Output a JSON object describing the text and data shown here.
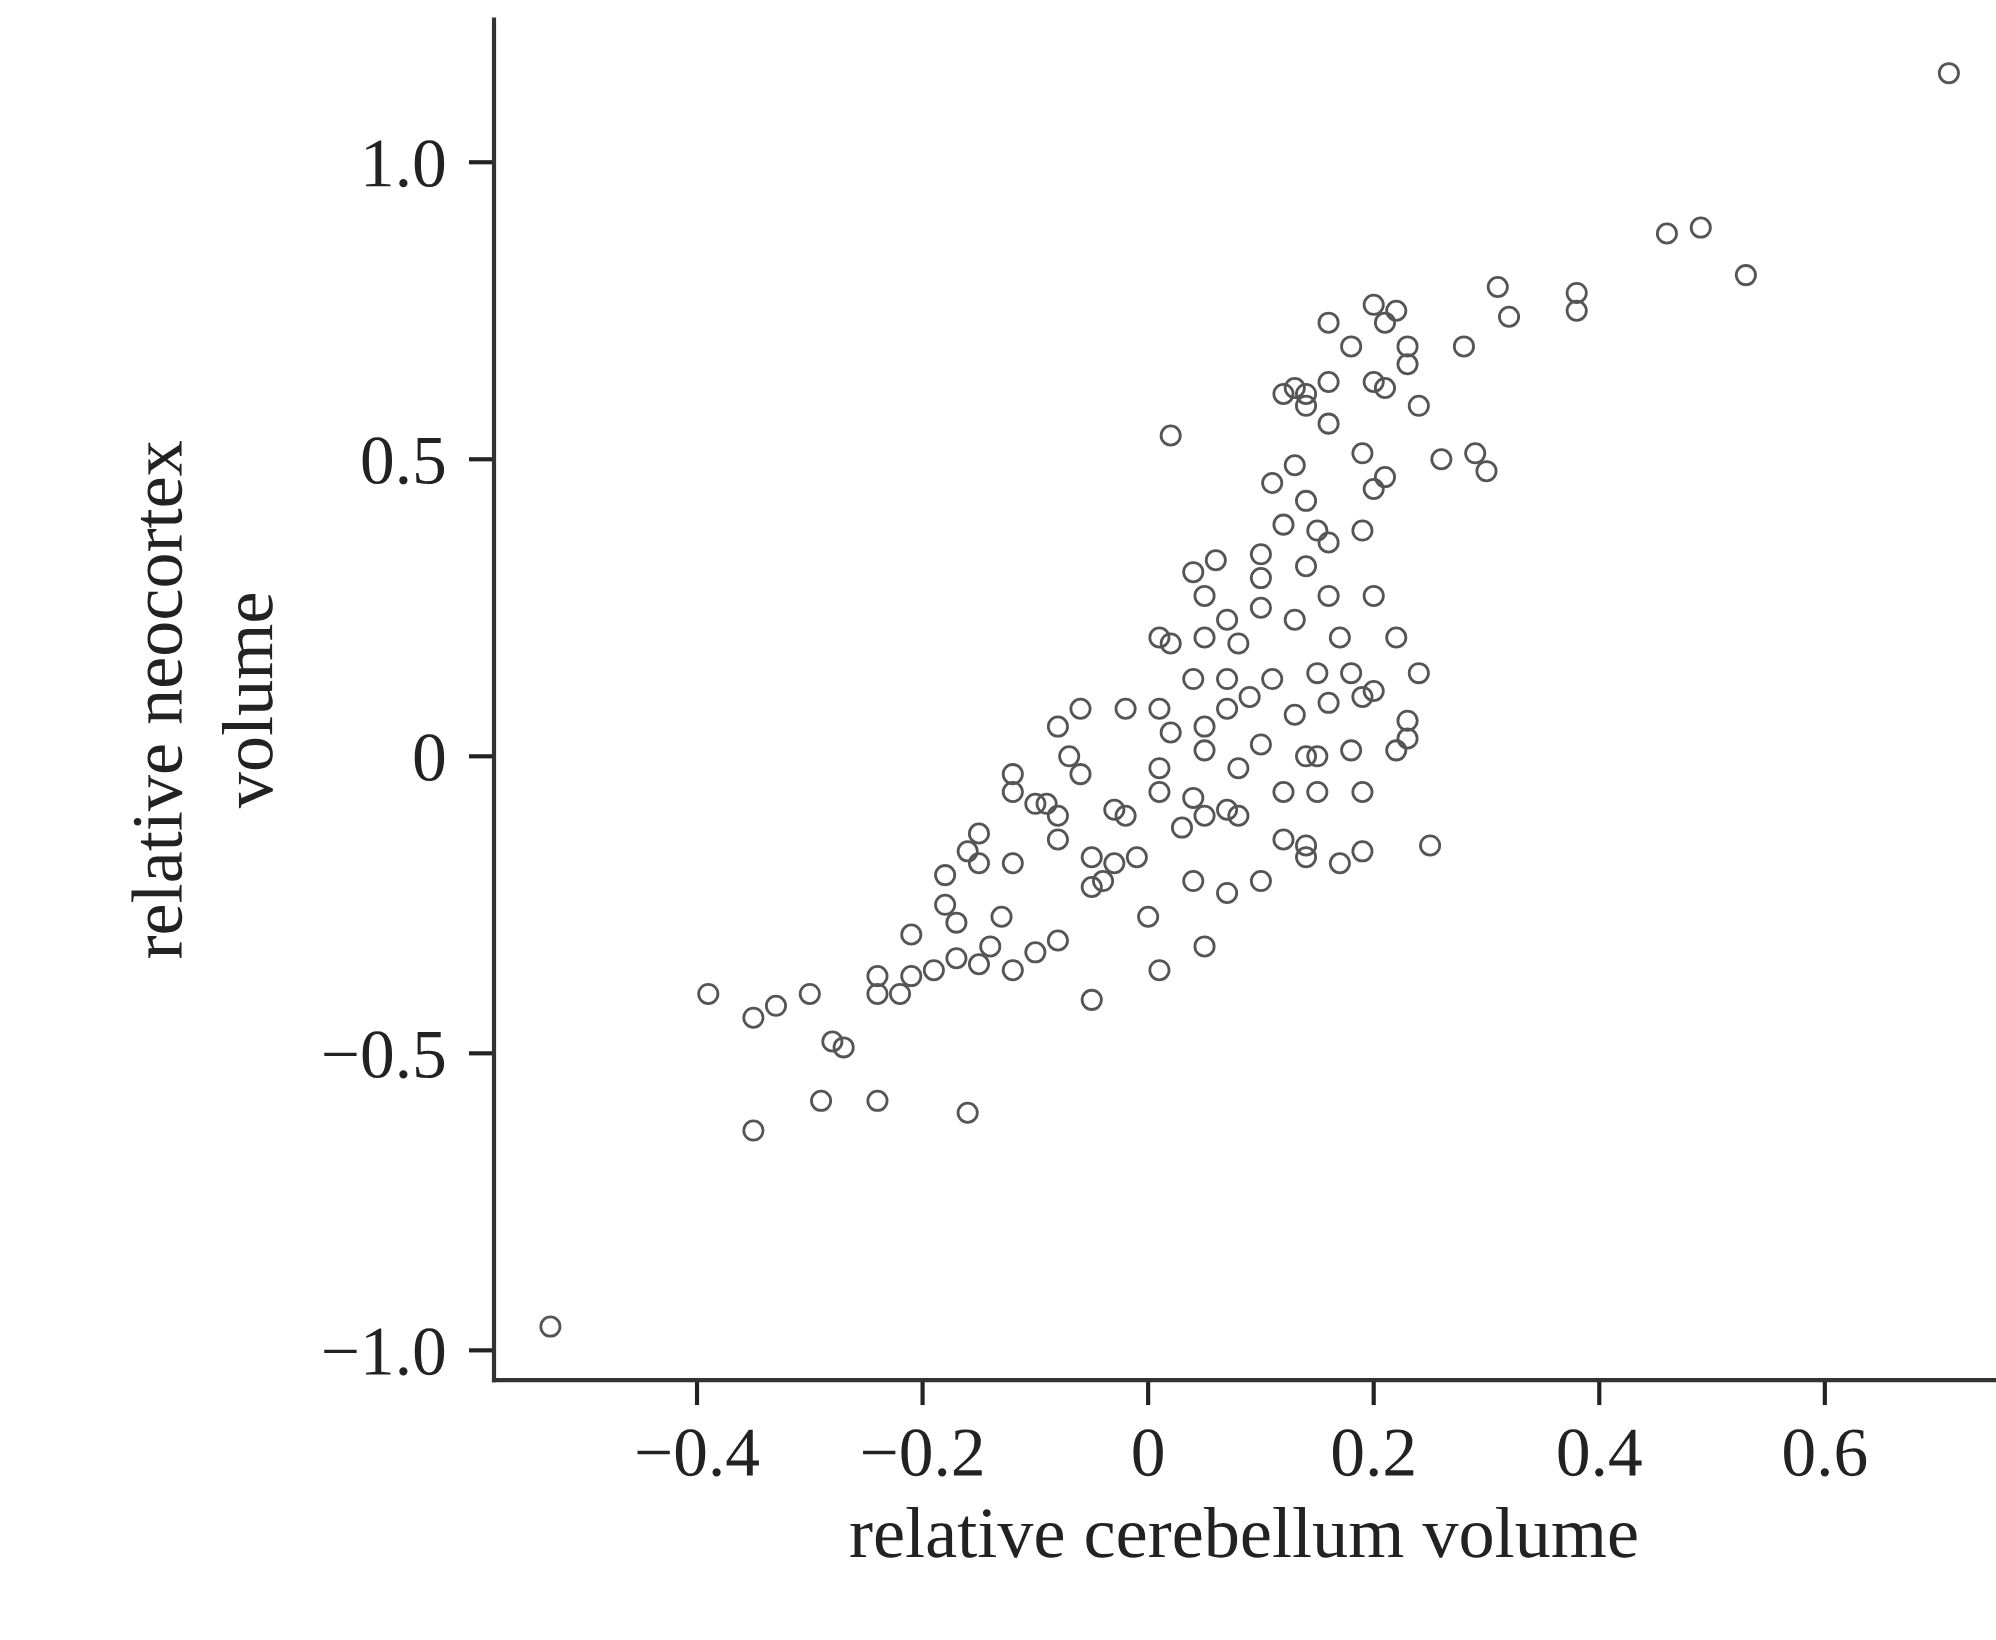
{
  "chart_data": {
    "type": "scatter",
    "xlabel": "relative cerebellum volume",
    "ylabel": "relative neocortex\nvolume",
    "xlim": [
      -0.58,
      0.75
    ],
    "ylim": [
      -1.05,
      1.24
    ],
    "xticks": [
      {
        "value": -0.4,
        "label": "−0.4"
      },
      {
        "value": -0.2,
        "label": "−0.2"
      },
      0,
      0.2,
      0.4,
      0.6
    ],
    "yticks": [
      {
        "value": -1.0,
        "label": "−1.0"
      },
      {
        "value": -0.5,
        "label": "−0.5"
      },
      0,
      0.5,
      {
        "value": 1,
        "label": "1.0"
      }
    ],
    "grid": false,
    "marker": "circle",
    "series": [
      {
        "color": "#555555",
        "x": [
          0.71,
          0.46,
          0.49,
          0.53,
          0.38,
          0.38,
          0.31,
          0.32,
          0.23,
          0.28,
          0.2,
          0.22,
          0.21,
          0.16,
          0.18,
          0.23,
          0.24,
          0.21,
          0.2,
          0.16,
          0.14,
          0.13,
          0.14,
          0.12,
          0.02,
          0.16,
          0.26,
          0.29,
          0.3,
          0.19,
          0.2,
          0.13,
          0.11,
          0.21,
          0.19,
          0.12,
          0.15,
          0.16,
          0.06,
          0.1,
          0.1,
          0.14,
          0.16,
          0.2,
          0.1,
          0.05,
          0.07,
          0.01,
          0.02,
          0.05,
          0.08,
          0.13,
          0.17,
          0.22,
          0.24,
          0.18,
          0.15,
          0.11,
          0.07,
          0.04,
          0.01,
          -0.02,
          0.02,
          0.07,
          0.13,
          0.19,
          0.2,
          0.23,
          0.23,
          0.18,
          0.15,
          0.1,
          0.05,
          0.05,
          -0.06,
          -0.08,
          -0.07,
          -0.12,
          -0.12,
          -0.09,
          -0.08,
          -0.03,
          0.01,
          0.04,
          0.01,
          0.15,
          0.19,
          0.12,
          0.08,
          0.07,
          0.05,
          0.12,
          0.14,
          0.17,
          0.19,
          0.25,
          0.1,
          0.07,
          0.04,
          -0.01,
          -0.03,
          -0.05,
          -0.08,
          -0.04,
          0.0,
          0.01,
          0.05,
          -0.05,
          -0.05,
          -0.08,
          -0.1,
          -0.13,
          -0.12,
          -0.15,
          -0.14,
          -0.17,
          -0.18,
          -0.18,
          -0.15,
          -0.16,
          -0.15,
          -0.12,
          -0.1,
          -0.21,
          -0.22,
          -0.21,
          -0.19,
          -0.24,
          -0.24,
          -0.17,
          -0.3,
          -0.33,
          -0.35,
          -0.39,
          -0.28,
          -0.27,
          -0.29,
          -0.24,
          -0.16,
          -0.35,
          -0.53,
          -0.02,
          0.03,
          0.08,
          0.14,
          0.22,
          0.16,
          0.09,
          0.04,
          0.14,
          0.14,
          -0.06
        ],
        "values": [
          1.15,
          0.88,
          0.89,
          0.81,
          0.78,
          0.75,
          0.79,
          0.74,
          0.69,
          0.69,
          0.76,
          0.75,
          0.73,
          0.73,
          0.69,
          0.66,
          0.59,
          0.62,
          0.63,
          0.63,
          0.61,
          0.62,
          0.59,
          0.61,
          0.54,
          0.56,
          0.5,
          0.51,
          0.48,
          0.51,
          0.45,
          0.49,
          0.46,
          0.47,
          0.38,
          0.39,
          0.38,
          0.36,
          0.33,
          0.34,
          0.3,
          0.32,
          0.27,
          0.27,
          0.25,
          0.27,
          0.23,
          0.2,
          0.19,
          0.2,
          0.19,
          0.23,
          0.2,
          0.2,
          0.14,
          0.14,
          0.14,
          0.13,
          0.13,
          0.13,
          0.08,
          0.08,
          0.04,
          0.08,
          0.07,
          0.1,
          0.11,
          0.06,
          0.03,
          0.01,
          0.0,
          0.02,
          0.01,
          0.05,
          0.08,
          0.05,
          0.0,
          -0.03,
          -0.06,
          -0.08,
          -0.1,
          -0.09,
          -0.06,
          -0.07,
          -0.02,
          -0.06,
          -0.06,
          -0.06,
          -0.1,
          -0.09,
          -0.1,
          -0.14,
          -0.15,
          -0.18,
          -0.16,
          -0.15,
          -0.21,
          -0.23,
          -0.21,
          -0.17,
          -0.18,
          -0.17,
          -0.14,
          -0.21,
          -0.27,
          -0.36,
          -0.32,
          -0.41,
          -0.22,
          -0.31,
          -0.33,
          -0.27,
          -0.36,
          -0.35,
          -0.32,
          -0.28,
          -0.25,
          -0.2,
          -0.13,
          -0.16,
          -0.18,
          -0.18,
          -0.08,
          -0.37,
          -0.4,
          -0.3,
          -0.36,
          -0.37,
          -0.4,
          -0.34,
          -0.4,
          -0.42,
          -0.44,
          -0.4,
          -0.48,
          -0.49,
          -0.58,
          -0.58,
          -0.6,
          -0.63,
          -0.96,
          -0.1,
          -0.12,
          -0.02,
          0.0,
          0.01,
          0.09,
          0.1,
          0.31,
          0.43,
          -0.17,
          -0.03
        ]
      }
    ]
  }
}
